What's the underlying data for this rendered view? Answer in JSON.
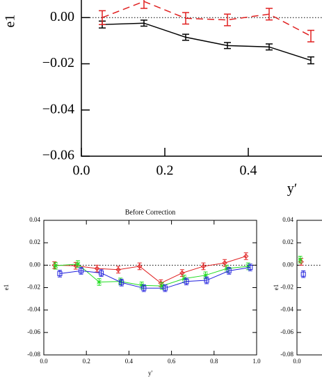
{
  "chart_data": [
    {
      "type": "line",
      "xlabel": "y′",
      "ylabel": "e1",
      "xlim": [
        0,
        1
      ],
      "ylim": [
        -0.06,
        0.02
      ],
      "xticks": [
        {
          "value": 0,
          "label": "0.0"
        },
        0.2,
        0.4
      ],
      "yticks": [
        {
          "value": 0,
          "label": "0.00"
        },
        {
          "value": -0.02,
          "label": "−0.02"
        },
        {
          "value": -0.04,
          "label": "−0.04"
        },
        {
          "value": -0.06,
          "label": "−0.06"
        }
      ],
      "zero_line": true,
      "series": [
        {
          "color": "#000000",
          "dash": "solid",
          "marker": "none",
          "x": [
            0.05,
            0.15,
            0.25,
            0.35,
            0.45,
            0.55
          ],
          "values": [
            -0.003,
            -0.0024,
            -0.0085,
            -0.0121,
            -0.0127,
            -0.0185
          ],
          "errors": [
            0.0015,
            0.0013,
            0.0013,
            0.0013,
            0.0013,
            0.0015
          ]
        },
        {
          "color": "#e02020",
          "dash": "dashed",
          "marker": "none",
          "x": [
            0.05,
            0.15,
            0.25,
            0.35,
            0.45,
            0.55
          ],
          "values": [
            0.0,
            0.007,
            -0.0003,
            -0.001,
            0.0015,
            -0.008
          ],
          "errors": [
            0.003,
            0.003,
            0.0025,
            0.0025,
            0.0025,
            0.0025
          ]
        }
      ]
    },
    {
      "type": "line",
      "title": "Before Correction",
      "xlabel": "y'",
      "ylabel": "e1",
      "xlim": [
        0,
        1
      ],
      "ylim": [
        -0.08,
        0.04
      ],
      "xticks": [
        {
          "value": 0,
          "label": "0.0"
        },
        0.2,
        0.4,
        0.6,
        0.8,
        {
          "value": 1,
          "label": "1.0"
        }
      ],
      "yticks": [
        0.04,
        0.02,
        {
          "value": 0,
          "label": "0.00"
        },
        -0.02,
        -0.04,
        -0.06,
        -0.08
      ],
      "zero_line": true,
      "series": [
        {
          "color": "#e02020",
          "dash": "solid",
          "marker": "diamond",
          "x": [
            0.05,
            0.15,
            0.25,
            0.35,
            0.45,
            0.55,
            0.65,
            0.75,
            0.85,
            0.95
          ],
          "values": [
            0.0,
            -0.0005,
            -0.003,
            -0.004,
            -0.001,
            -0.016,
            -0.007,
            -0.001,
            0.002,
            0.008
          ],
          "errors": [
            0.003,
            0.003,
            0.003,
            0.003,
            0.003,
            0.003,
            0.003,
            0.003,
            0.003,
            0.003
          ]
        },
        {
          "color": "#20dd20",
          "dash": "solid",
          "marker": "cross",
          "x": [
            0.055,
            0.16,
            0.26,
            0.36,
            0.46,
            0.555,
            0.66,
            0.76,
            0.86,
            0.96
          ],
          "values": [
            -0.0005,
            0.001,
            -0.015,
            -0.0145,
            -0.018,
            -0.0185,
            -0.012,
            -0.009,
            -0.003,
            -0.001
          ],
          "errors": [
            0.003,
            0.003,
            0.003,
            0.003,
            0.003,
            0.003,
            0.003,
            0.003,
            0.003,
            0.003
          ]
        },
        {
          "color": "#2020dd",
          "dash": "solid",
          "marker": "square",
          "x": [
            0.075,
            0.175,
            0.27,
            0.365,
            0.47,
            0.57,
            0.67,
            0.765,
            0.87,
            0.97
          ],
          "values": [
            -0.0075,
            -0.005,
            -0.007,
            -0.0155,
            -0.0205,
            -0.0205,
            -0.0145,
            -0.0135,
            -0.005,
            -0.002
          ],
          "errors": [
            0.003,
            0.003,
            0.003,
            0.003,
            0.003,
            0.003,
            0.003,
            0.003,
            0.003,
            0.003
          ]
        }
      ]
    },
    {
      "type": "line",
      "ylabel": "e1",
      "xlim": [
        0,
        1
      ],
      "ylim": [
        -0.08,
        0.04
      ],
      "xticks": [
        {
          "value": 0,
          "label": "0.0"
        }
      ],
      "yticks": [
        0.04,
        0.02,
        {
          "value": 0,
          "label": "0.00"
        },
        -0.02,
        -0.04,
        -0.06,
        -0.08
      ],
      "zero_line": true,
      "series": [
        {
          "color": "#e02020",
          "dash": "solid",
          "marker": "diamond",
          "x": [
            0.02
          ],
          "values": [
            0.003
          ],
          "errors": [
            0.003
          ]
        },
        {
          "color": "#20dd20",
          "dash": "solid",
          "marker": "cross",
          "x": [
            0.015
          ],
          "values": [
            0.005
          ],
          "errors": [
            0.003
          ]
        },
        {
          "color": "#2020dd",
          "dash": "solid",
          "marker": "square",
          "x": [
            0.03
          ],
          "values": [
            -0.008
          ],
          "errors": [
            0.003
          ]
        }
      ]
    }
  ]
}
